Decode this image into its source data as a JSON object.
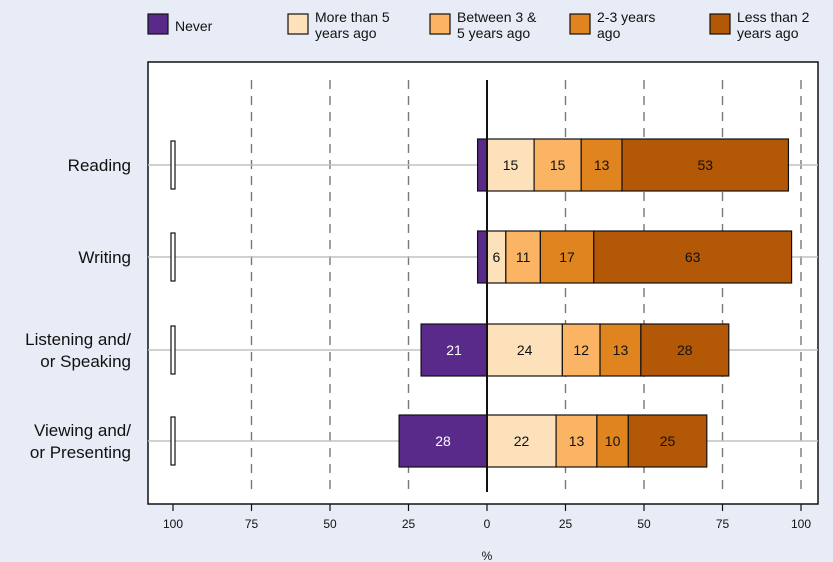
{
  "chart_data": {
    "type": "bar",
    "orientation": "horizontal",
    "stacked": "diverging",
    "categories": [
      "Reading",
      "Writing",
      "Listening and/\nor Speaking",
      "Viewing and/\nor Presenting"
    ],
    "series": [
      {
        "name": "Never",
        "color": "#5a2a8a",
        "values": [
          3,
          3,
          21,
          28
        ],
        "labels": [
          "",
          "",
          "21",
          "28"
        ]
      },
      {
        "name": "More than 5\nyears ago",
        "color": "#fde1bb",
        "values": [
          15,
          6,
          24,
          22
        ],
        "labels": [
          "15",
          "6",
          "24",
          "22"
        ]
      },
      {
        "name": "Between 3 &\n5 years ago",
        "color": "#fbb463",
        "values": [
          15,
          11,
          12,
          13
        ],
        "labels": [
          "15",
          "11",
          "12",
          "13"
        ]
      },
      {
        "name": "2-3 years\nago",
        "color": "#e0841f",
        "values": [
          13,
          17,
          13,
          10
        ],
        "labels": [
          "13",
          "17",
          "13",
          "10"
        ]
      },
      {
        "name": "Less than 2\nyears ago",
        "color": "#b35806",
        "values": [
          53,
          63,
          28,
          25
        ],
        "labels": [
          "53",
          "63",
          "28",
          "25"
        ]
      }
    ],
    "xlim": [
      -100,
      100
    ],
    "xticks": [
      -100,
      -75,
      -50,
      -25,
      0,
      25,
      50,
      75,
      100
    ],
    "xtick_labels": [
      "100",
      "75",
      "50",
      "25",
      "0",
      "25",
      "50",
      "75",
      "100"
    ],
    "xlabel": "%",
    "title": "",
    "legend_position": "top",
    "gridlines": "dashed-vertical",
    "left_markers": [
      {
        "value": -100,
        "label": ""
      },
      {
        "value": -100,
        "label": ""
      },
      {
        "value": -100,
        "label": ""
      },
      {
        "value": -100,
        "label": ""
      }
    ]
  }
}
